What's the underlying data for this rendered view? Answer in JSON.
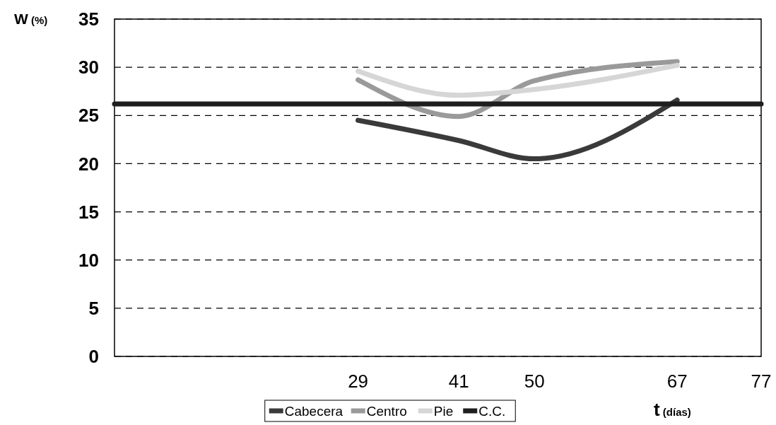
{
  "chart_data": {
    "type": "line",
    "xlabel": "t (días)",
    "ylabel": "W (%)",
    "x": [
      29,
      41,
      50,
      67
    ],
    "series": [
      {
        "name": "Cabecera",
        "color": "#3a3a3a",
        "values": [
          24.5,
          22.4,
          20.5,
          26.6
        ]
      },
      {
        "name": "Centro",
        "color": "#9a9a9a",
        "values": [
          28.7,
          24.9,
          28.6,
          30.6
        ]
      },
      {
        "name": "Pie",
        "color": "#d6d6d6",
        "values": [
          29.6,
          27.1,
          27.7,
          30.2
        ]
      },
      {
        "name": "C.C.",
        "color": "#1e1e1e",
        "x": [
          0,
          77
        ],
        "values": [
          26.2,
          26.2
        ]
      }
    ],
    "xlim": [
      0,
      77
    ],
    "xticks": [
      29,
      41,
      50,
      67,
      77
    ],
    "ylim": [
      0,
      35
    ],
    "yticks": [
      0,
      5,
      10,
      15,
      20,
      25,
      30,
      35
    ],
    "grid": "y",
    "legend": "bottom",
    "marker": "none",
    "line_style": "solid"
  }
}
